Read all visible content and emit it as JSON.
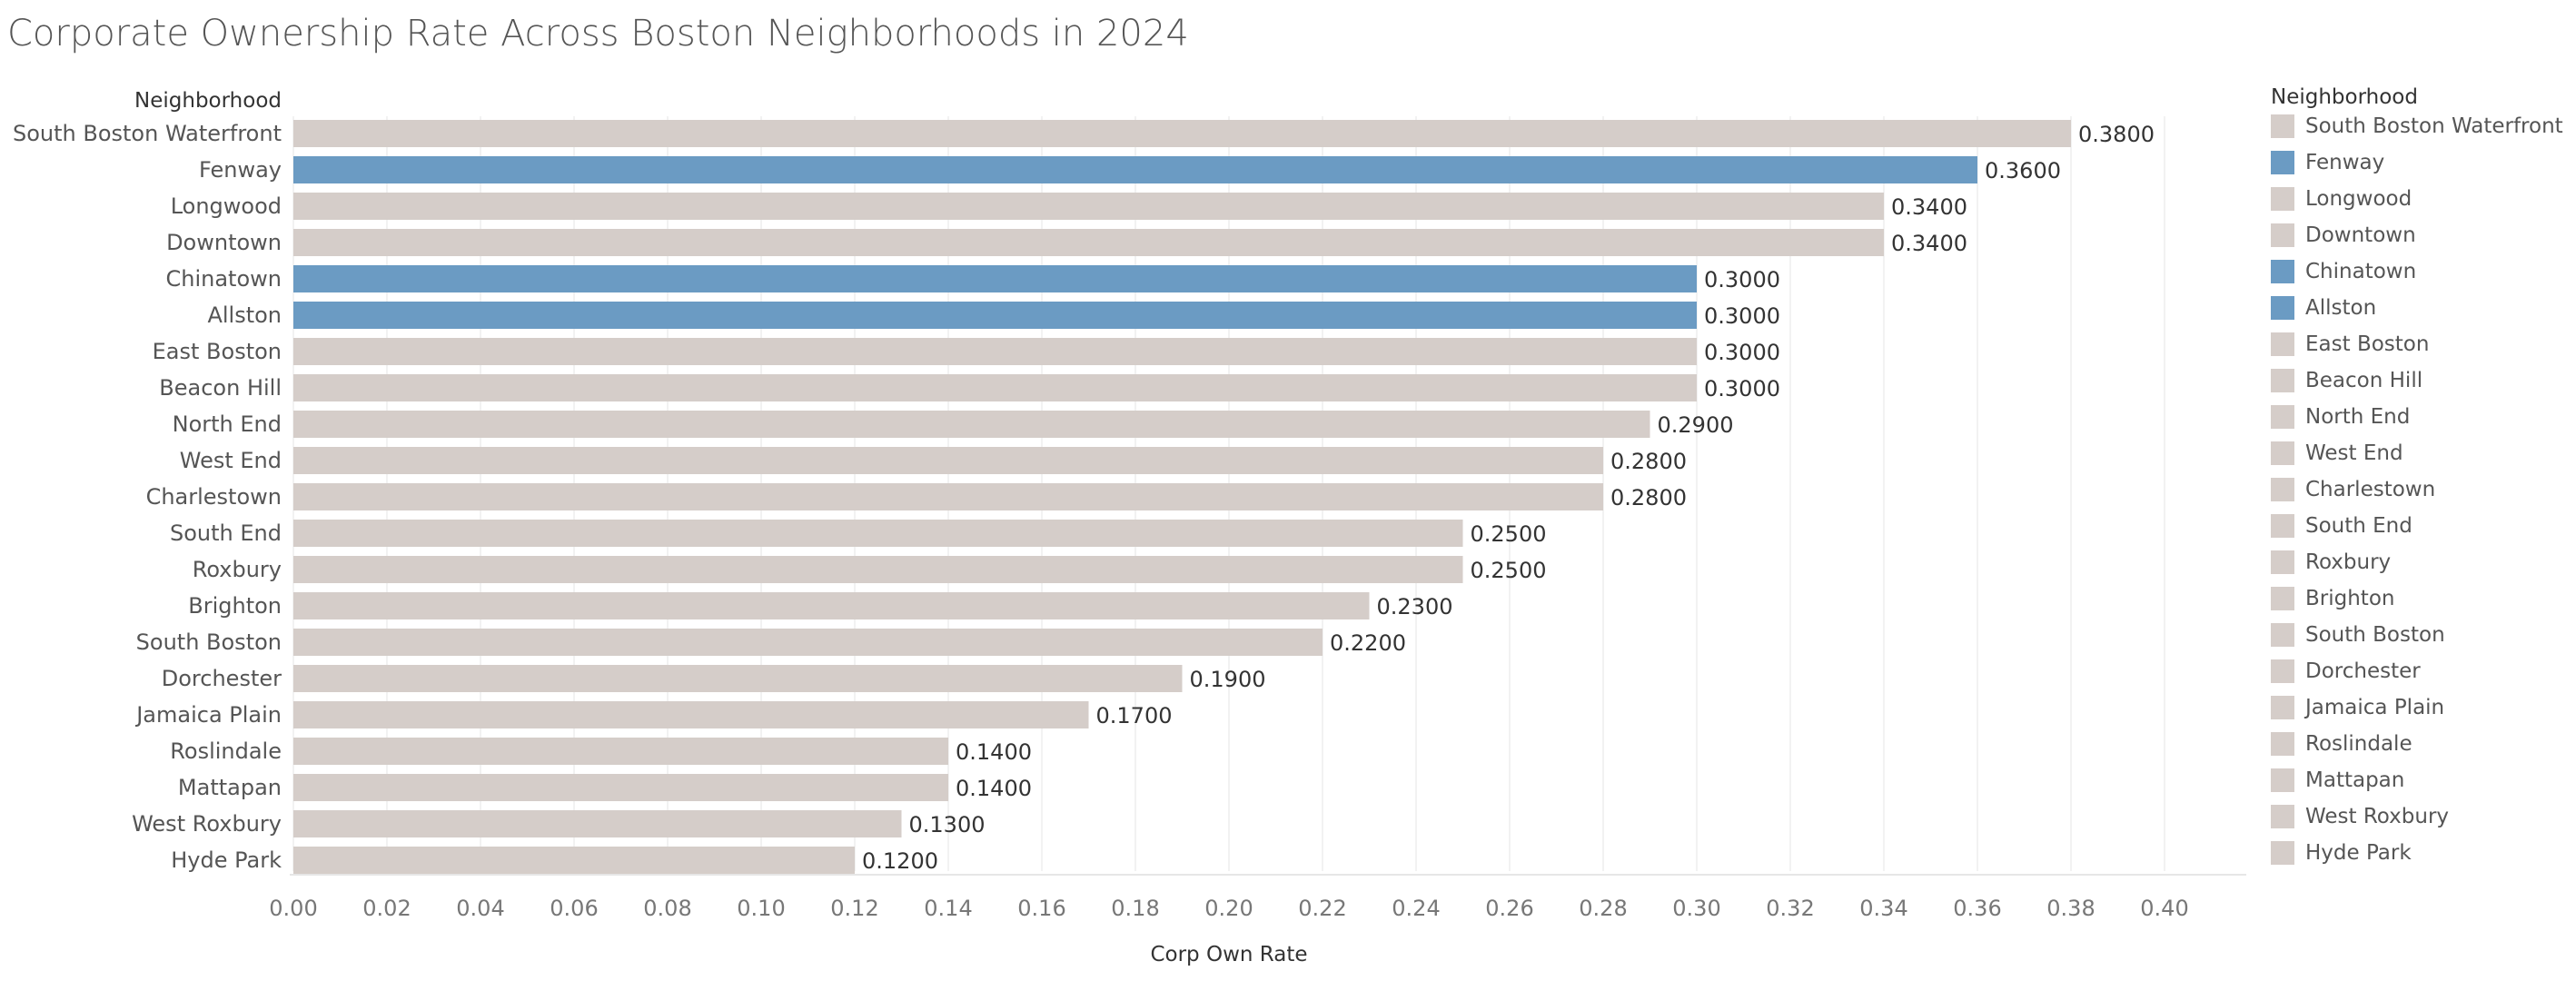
{
  "page": {
    "title": "Corporate Ownership Rate Across Boston Neighborhoods in 2024"
  },
  "colors": {
    "highlight": "#6b9bc3",
    "default": "#d5cdc9",
    "gridline": "#eeeeee",
    "label": "#555555",
    "value_label": "#333333"
  },
  "legend": {
    "title": "Neighborhood",
    "items": [
      {
        "label": "South Boston Waterfront",
        "color": "#d5cdc9"
      },
      {
        "label": "Fenway",
        "color": "#6b9bc3"
      },
      {
        "label": "Longwood",
        "color": "#d5cdc9"
      },
      {
        "label": "Downtown",
        "color": "#d5cdc9"
      },
      {
        "label": "Chinatown",
        "color": "#6b9bc3"
      },
      {
        "label": "Allston",
        "color": "#6b9bc3"
      },
      {
        "label": "East Boston",
        "color": "#d5cdc9"
      },
      {
        "label": "Beacon Hill",
        "color": "#d5cdc9"
      },
      {
        "label": "North End",
        "color": "#d5cdc9"
      },
      {
        "label": "West End",
        "color": "#d5cdc9"
      },
      {
        "label": "Charlestown",
        "color": "#d5cdc9"
      },
      {
        "label": "South End",
        "color": "#d5cdc9"
      },
      {
        "label": "Roxbury",
        "color": "#d5cdc9"
      },
      {
        "label": "Brighton",
        "color": "#d5cdc9"
      },
      {
        "label": "South Boston",
        "color": "#d5cdc9"
      },
      {
        "label": "Dorchester",
        "color": "#d5cdc9"
      },
      {
        "label": "Jamaica Plain",
        "color": "#d5cdc9"
      },
      {
        "label": "Roslindale",
        "color": "#d5cdc9"
      },
      {
        "label": "Mattapan",
        "color": "#d5cdc9"
      },
      {
        "label": "West Roxbury",
        "color": "#d5cdc9"
      },
      {
        "label": "Hyde Park",
        "color": "#d5cdc9"
      }
    ]
  },
  "chart_data": {
    "type": "bar",
    "orientation": "horizontal",
    "title": "Corporate Ownership Rate Across Boston Neighborhoods in 2024",
    "category_header": "Neighborhood",
    "xlabel": "Corp Own Rate",
    "ylabel": "Neighborhood",
    "xlim": [
      0,
      0.4
    ],
    "x_ticks": [
      "0.00",
      "0.02",
      "0.04",
      "0.06",
      "0.08",
      "0.10",
      "0.12",
      "0.14",
      "0.16",
      "0.18",
      "0.20",
      "0.22",
      "0.24",
      "0.26",
      "0.28",
      "0.30",
      "0.32",
      "0.34",
      "0.36",
      "0.38",
      "0.40"
    ],
    "grid": "vertical",
    "legend_position": "right",
    "categories": [
      "South Boston Waterfront",
      "Fenway",
      "Longwood",
      "Downtown",
      "Chinatown",
      "Allston",
      "East Boston",
      "Beacon Hill",
      "North End",
      "West End",
      "Charlestown",
      "South End",
      "Roxbury",
      "Brighton",
      "South Boston",
      "Dorchester",
      "Jamaica Plain",
      "Roslindale",
      "Mattapan",
      "West Roxbury",
      "Hyde Park"
    ],
    "values": [
      0.38,
      0.36,
      0.34,
      0.34,
      0.3,
      0.3,
      0.3,
      0.3,
      0.29,
      0.28,
      0.28,
      0.25,
      0.25,
      0.23,
      0.22,
      0.19,
      0.17,
      0.14,
      0.14,
      0.13,
      0.12
    ],
    "value_labels": [
      "0.3800",
      "0.3600",
      "0.3400",
      "0.3400",
      "0.3000",
      "0.3000",
      "0.3000",
      "0.3000",
      "0.2900",
      "0.2800",
      "0.2800",
      "0.2500",
      "0.2500",
      "0.2300",
      "0.2200",
      "0.1900",
      "0.1700",
      "0.1400",
      "0.1400",
      "0.1300",
      "0.1200"
    ],
    "highlighted": [
      "Fenway",
      "Chinatown",
      "Allston"
    ]
  }
}
